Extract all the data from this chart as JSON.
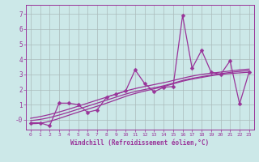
{
  "title": "",
  "xlabel": "Windchill (Refroidissement éolien,°C)",
  "ylabel": "",
  "background_color": "#cce8e8",
  "line_color": "#993399",
  "grid_color": "#aabbbb",
  "xlim": [
    -0.5,
    23.5
  ],
  "ylim": [
    -0.65,
    7.6
  ],
  "xticks": [
    0,
    1,
    2,
    3,
    4,
    5,
    6,
    7,
    8,
    9,
    10,
    11,
    12,
    13,
    14,
    15,
    16,
    17,
    18,
    19,
    20,
    21,
    22,
    23
  ],
  "yticks": [
    0,
    1,
    2,
    3,
    4,
    5,
    6,
    7
  ],
  "ytick_labels": [
    "-0",
    "1",
    "2",
    "3",
    "4",
    "5",
    "6",
    "7"
  ],
  "series1_x": [
    0,
    1,
    2,
    3,
    4,
    5,
    6,
    7,
    8,
    9,
    10,
    11,
    12,
    13,
    14,
    15,
    16,
    17,
    18,
    19,
    20,
    21,
    22,
    23
  ],
  "series1_y": [
    -0.2,
    -0.2,
    -0.4,
    1.1,
    1.1,
    1.0,
    0.5,
    0.65,
    1.5,
    1.7,
    1.9,
    3.3,
    2.4,
    1.85,
    2.15,
    2.2,
    6.9,
    3.4,
    4.6,
    3.15,
    3.0,
    3.9,
    1.05,
    3.15
  ],
  "curve1_x": [
    0,
    2,
    4,
    6,
    8,
    10,
    12,
    14,
    16,
    18,
    20,
    22,
    23
  ],
  "curve1_y": [
    -0.25,
    -0.1,
    0.3,
    0.7,
    1.1,
    1.55,
    1.9,
    2.2,
    2.55,
    2.8,
    3.0,
    3.1,
    3.15
  ],
  "curve2_x": [
    0,
    2,
    4,
    6,
    8,
    10,
    12,
    14,
    16,
    18,
    20,
    22,
    23
  ],
  "curve2_y": [
    -0.05,
    0.15,
    0.5,
    0.9,
    1.3,
    1.7,
    2.0,
    2.25,
    2.6,
    2.85,
    3.05,
    3.2,
    3.25
  ],
  "curve3_x": [
    0,
    2,
    4,
    6,
    8,
    10,
    12,
    14,
    16,
    18,
    20,
    22,
    23
  ],
  "curve3_y": [
    0.1,
    0.35,
    0.7,
    1.1,
    1.5,
    1.9,
    2.2,
    2.45,
    2.75,
    3.0,
    3.15,
    3.3,
    3.35
  ],
  "marker": "D",
  "marker_size": 2.5,
  "linewidth": 0.9
}
